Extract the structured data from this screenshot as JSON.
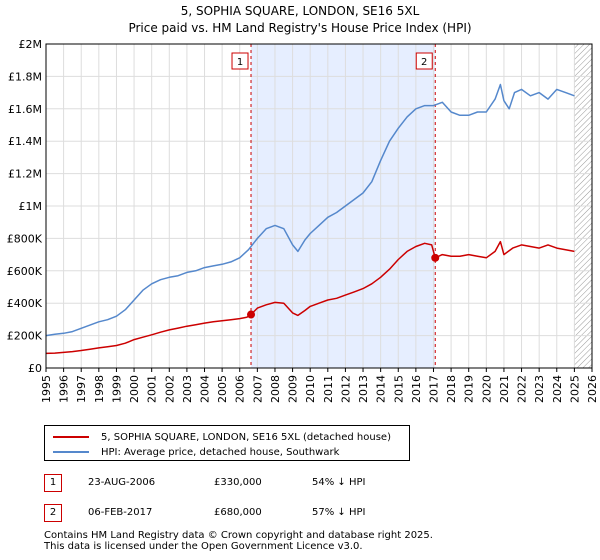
{
  "chart_data": {
    "type": "line",
    "title": "5, SOPHIA SQUARE, LONDON, SE16 5XL",
    "subtitle": "Price paid vs. HM Land Registry's House Price Index (HPI)",
    "xlabel": "",
    "ylabel": "",
    "xlim": [
      1995,
      2026
    ],
    "ylim": [
      0,
      2000000
    ],
    "x_ticks": [
      "1995",
      "1996",
      "1997",
      "1998",
      "1999",
      "2000",
      "2001",
      "2002",
      "2003",
      "2004",
      "2005",
      "2006",
      "2007",
      "2008",
      "2009",
      "2010",
      "2011",
      "2012",
      "2013",
      "2014",
      "2015",
      "2016",
      "2017",
      "2018",
      "2019",
      "2020",
      "2021",
      "2022",
      "2023",
      "2024",
      "2025",
      "2026"
    ],
    "y_ticks": [
      {
        "value": 0,
        "label": "£0"
      },
      {
        "value": 200000,
        "label": "£200K"
      },
      {
        "value": 400000,
        "label": "£400K"
      },
      {
        "value": 600000,
        "label": "£600K"
      },
      {
        "value": 800000,
        "label": "£800K"
      },
      {
        "value": 1000000,
        "label": "£1M"
      },
      {
        "value": 1200000,
        "label": "£1.2M"
      },
      {
        "value": 1400000,
        "label": "£1.4M"
      },
      {
        "value": 1600000,
        "label": "£1.6M"
      },
      {
        "value": 1800000,
        "label": "£1.8M"
      },
      {
        "value": 2000000,
        "label": "£2M"
      }
    ],
    "grid": true,
    "series": [
      {
        "name": "5, SOPHIA SQUARE, LONDON, SE16 5XL (detached house)",
        "color": "#cc0000",
        "x": [
          1995.0,
          1995.5,
          1996.0,
          1996.5,
          1997.0,
          1997.5,
          1998.0,
          1998.5,
          1999.0,
          1999.5,
          2000.0,
          2000.5,
          2001.0,
          2001.5,
          2002.0,
          2002.5,
          2003.0,
          2003.5,
          2004.0,
          2004.5,
          2005.0,
          2005.5,
          2006.0,
          2006.4,
          2006.64,
          2007.0,
          2007.5,
          2008.0,
          2008.5,
          2009.0,
          2009.3,
          2009.7,
          2010.0,
          2010.5,
          2011.0,
          2011.5,
          2012.0,
          2012.5,
          2013.0,
          2013.5,
          2014.0,
          2014.5,
          2015.0,
          2015.5,
          2016.0,
          2016.5,
          2016.9,
          2017.1,
          2017.5,
          2018.0,
          2018.5,
          2019.0,
          2019.5,
          2020.0,
          2020.5,
          2020.8,
          2021.0,
          2021.5,
          2022.0,
          2022.5,
          2023.0,
          2023.5,
          2024.0,
          2024.5,
          2025.0
        ],
        "values": [
          90000,
          92000,
          96000,
          101000,
          108000,
          116000,
          124000,
          131000,
          139000,
          153000,
          175000,
          190000,
          205000,
          221000,
          235000,
          246000,
          258000,
          267000,
          277000,
          286000,
          292000,
          298000,
          305000,
          313000,
          330000,
          370000,
          390000,
          405000,
          400000,
          340000,
          325000,
          355000,
          380000,
          400000,
          420000,
          430000,
          450000,
          470000,
          490000,
          520000,
          560000,
          610000,
          670000,
          720000,
          750000,
          770000,
          760000,
          680000,
          700000,
          690000,
          690000,
          700000,
          690000,
          680000,
          720000,
          780000,
          700000,
          740000,
          760000,
          750000,
          740000,
          760000,
          740000,
          730000,
          720000
        ]
      },
      {
        "name": "HPI: Average price, detached house, Southwark",
        "color": "#5588cc",
        "x": [
          1995.0,
          1995.5,
          1996.0,
          1996.5,
          1997.0,
          1997.5,
          1998.0,
          1998.5,
          1999.0,
          1999.5,
          2000.0,
          2000.5,
          2001.0,
          2001.5,
          2002.0,
          2002.5,
          2003.0,
          2003.5,
          2004.0,
          2004.5,
          2005.0,
          2005.5,
          2006.0,
          2006.5,
          2007.0,
          2007.5,
          2008.0,
          2008.5,
          2009.0,
          2009.3,
          2009.7,
          2010.0,
          2010.5,
          2011.0,
          2011.5,
          2012.0,
          2012.5,
          2013.0,
          2013.5,
          2014.0,
          2014.5,
          2015.0,
          2015.5,
          2016.0,
          2016.5,
          2017.0,
          2017.5,
          2018.0,
          2018.5,
          2019.0,
          2019.5,
          2020.0,
          2020.5,
          2020.8,
          2021.0,
          2021.3,
          2021.6,
          2022.0,
          2022.5,
          2023.0,
          2023.5,
          2024.0,
          2024.5,
          2025.0
        ],
        "values": [
          200000,
          208000,
          214000,
          225000,
          245000,
          265000,
          285000,
          298000,
          320000,
          360000,
          420000,
          480000,
          520000,
          545000,
          560000,
          570000,
          590000,
          600000,
          620000,
          630000,
          640000,
          655000,
          680000,
          730000,
          800000,
          860000,
          880000,
          860000,
          760000,
          720000,
          790000,
          830000,
          880000,
          930000,
          960000,
          1000000,
          1040000,
          1080000,
          1150000,
          1280000,
          1400000,
          1480000,
          1550000,
          1600000,
          1620000,
          1620000,
          1640000,
          1580000,
          1560000,
          1560000,
          1580000,
          1580000,
          1660000,
          1750000,
          1650000,
          1600000,
          1700000,
          1720000,
          1680000,
          1700000,
          1660000,
          1720000,
          1700000,
          1680000
        ]
      }
    ],
    "annotations": [
      {
        "label": "1",
        "x": 2006.64,
        "value": 330000
      },
      {
        "label": "2",
        "x": 2017.1,
        "value": 680000
      }
    ],
    "shaded_region": {
      "from": 2006.64,
      "to": 2017.1,
      "color": "#e6eeff"
    },
    "hatched_region": {
      "from": 2025.0,
      "to": 2026.0
    }
  },
  "legend": {
    "items": [
      {
        "label": "5, SOPHIA SQUARE, LONDON, SE16 5XL (detached house)",
        "color": "#cc0000"
      },
      {
        "label": "HPI: Average price, detached house, Southwark",
        "color": "#5588cc"
      }
    ]
  },
  "sales": [
    {
      "num": "1",
      "date": "23-AUG-2006",
      "price": "£330,000",
      "hpi": "54% ↓ HPI"
    },
    {
      "num": "2",
      "date": "06-FEB-2017",
      "price": "£680,000",
      "hpi": "57% ↓ HPI"
    }
  ],
  "footer": {
    "line1": "Contains HM Land Registry data © Crown copyright and database right 2025.",
    "line2": "This data is licensed under the Open Government Licence v3.0."
  }
}
